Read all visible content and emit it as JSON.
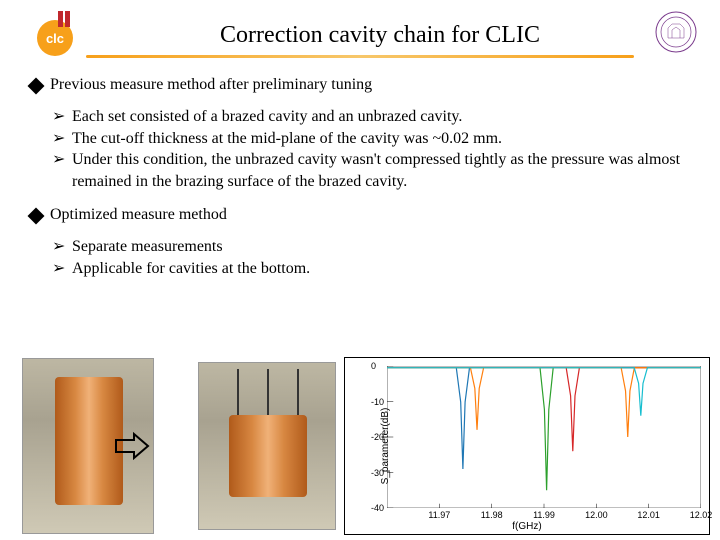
{
  "title": "Correction cavity chain for CLIC",
  "section1": {
    "heading": "Previous measure method after preliminary tuning",
    "items": [
      "Each set consisted of a brazed cavity and an unbrazed cavity.",
      "The cut-off thickness at the mid-plane of the cavity was ~0.02 mm.",
      "Under this condition, the unbrazed cavity wasn't compressed tightly as the pressure was almost remained in the brazing surface of the brazed cavity."
    ]
  },
  "section2": {
    "heading": "Optimized measure method",
    "items": [
      "Separate measurements",
      "Applicable for cavities at the bottom."
    ]
  },
  "chart": {
    "type": "line",
    "xlabel": "f(GHz)",
    "ylabel": "S_parameter(dB)",
    "xlim": [
      11.96,
      12.02
    ],
    "ylim": [
      -40,
      0
    ],
    "xticks": [
      11.97,
      11.98,
      11.99,
      12.0,
      12.01,
      12.02
    ],
    "yticks": [
      0,
      -10,
      -20,
      -30,
      -40
    ],
    "background_color": "#ffffff",
    "axis_color": "#000000",
    "series": [
      {
        "color": "#1f77b4",
        "dip_x": 11.9745,
        "dip_y": -29
      },
      {
        "color": "#ff7f0e",
        "dip_x": 11.9772,
        "dip_y": -18
      },
      {
        "color": "#2ca02c",
        "dip_x": 11.9905,
        "dip_y": -35
      },
      {
        "color": "#d62728",
        "dip_x": 11.9955,
        "dip_y": -24
      },
      {
        "color": "#ff7f0e",
        "dip_x": 12.006,
        "dip_y": -20
      },
      {
        "color": "#17becf",
        "dip_x": 12.0085,
        "dip_y": -14
      }
    ]
  },
  "logo_left": {
    "bg_color": "#f7a01a",
    "text_color": "#ffffff",
    "accent": "#c0282d"
  },
  "logo_right": {
    "stroke": "#7a3a8c"
  }
}
